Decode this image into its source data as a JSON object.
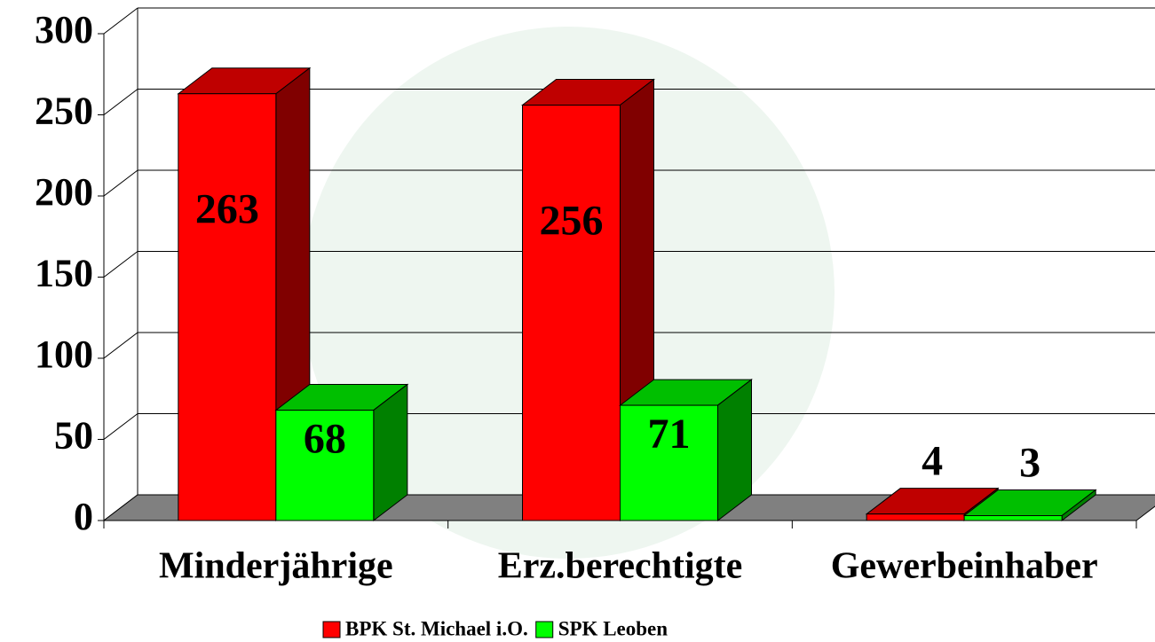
{
  "chart_data": {
    "type": "bar3d",
    "categories": [
      "Minderjährige",
      "Erz.berechtigte",
      "Gewerbeinhaber"
    ],
    "series": [
      {
        "name": "BPK St. Michael i.O.",
        "color": "#ff0000",
        "values": [
          263,
          256,
          4
        ]
      },
      {
        "name": "SPK Leoben",
        "color": "#00ff00",
        "values": [
          68,
          71,
          3
        ]
      }
    ],
    "ylim": [
      0,
      300
    ],
    "yticks": [
      0,
      50,
      100,
      150,
      200,
      250,
      300
    ],
    "grid": true,
    "legend": "bottom"
  }
}
